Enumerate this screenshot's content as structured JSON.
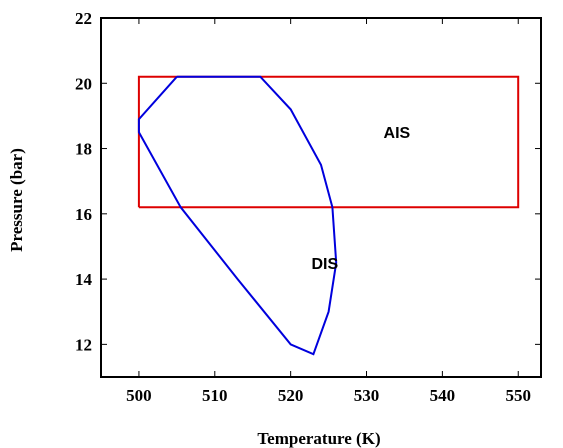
{
  "chart_data": {
    "type": "line",
    "title": "",
    "xlabel": "Temperature (K)",
    "ylabel": "Pressure (bar)",
    "xlim": [
      495,
      553
    ],
    "ylim": [
      11,
      22
    ],
    "xticks": [
      500,
      510,
      520,
      530,
      540,
      550
    ],
    "yticks": [
      12,
      14,
      16,
      18,
      20,
      22
    ],
    "grid": false,
    "legend": "none",
    "series": [
      {
        "color": "#dd0000",
        "closed": true,
        "x": [
          500,
          550,
          550,
          500,
          500
        ],
        "y": [
          16.2,
          16.2,
          20.2,
          20.2,
          16.2
        ]
      },
      {
        "color": "#0000dd",
        "closed": false,
        "x": [
          505,
          516,
          520,
          524,
          525.5,
          526,
          525,
          523,
          520,
          513,
          505.5,
          500,
          500,
          505
        ],
        "y": [
          20.2,
          20.2,
          19.2,
          17.5,
          16.2,
          14.5,
          13.0,
          11.7,
          12.0,
          14.0,
          16.2,
          18.5,
          18.9,
          20.2
        ]
      }
    ],
    "annotations": [
      {
        "text": "AIS",
        "x": 534,
        "y": 18.5
      },
      {
        "text": "DIS",
        "x": 524.5,
        "y": 14.5
      }
    ]
  }
}
